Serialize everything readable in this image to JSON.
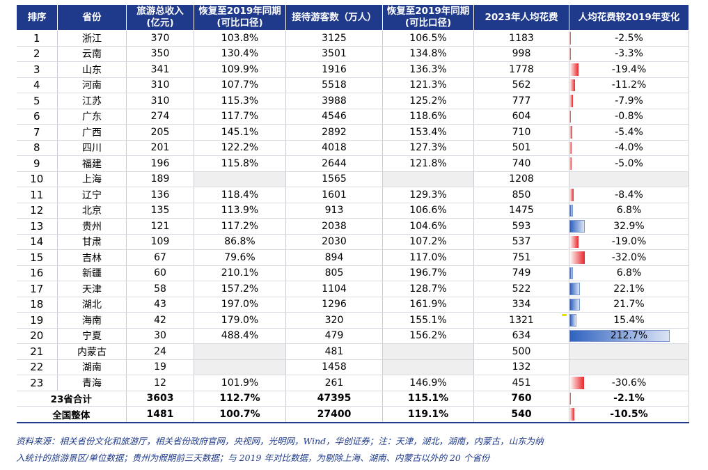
{
  "table": {
    "headers": [
      [
        "排序"
      ],
      [
        "省份"
      ],
      [
        "旅游总收入",
        "(亿元)"
      ],
      [
        "恢复至2019年同期",
        "(可比口径)"
      ],
      [
        "接待游客数（万人）"
      ],
      [
        "恢复至2019年同期",
        "(可比口径)"
      ],
      [
        "2023年人均花费"
      ],
      [
        "人均花费较2019年变化"
      ]
    ],
    "rows": [
      {
        "rank": "1",
        "province": "浙江",
        "revenue": "370",
        "rev_recovery": "103.8%",
        "visitors": "3125",
        "vis_recovery": "106.5%",
        "spend": "1183",
        "change": "-2.5%",
        "change_value": -2.5
      },
      {
        "rank": "2",
        "province": "云南",
        "revenue": "350",
        "rev_recovery": "130.4%",
        "visitors": "3501",
        "vis_recovery": "134.8%",
        "spend": "998",
        "change": "-3.3%",
        "change_value": -3.3
      },
      {
        "rank": "3",
        "province": "山东",
        "revenue": "341",
        "rev_recovery": "109.9%",
        "visitors": "1916",
        "vis_recovery": "136.3%",
        "spend": "1778",
        "change": "-19.4%",
        "change_value": -19.4
      },
      {
        "rank": "4",
        "province": "河南",
        "revenue": "310",
        "rev_recovery": "107.7%",
        "visitors": "5518",
        "vis_recovery": "121.3%",
        "spend": "562",
        "change": "-11.2%",
        "change_value": -11.2
      },
      {
        "rank": "5",
        "province": "江苏",
        "revenue": "310",
        "rev_recovery": "115.3%",
        "visitors": "3988",
        "vis_recovery": "125.2%",
        "spend": "777",
        "change": "-7.9%",
        "change_value": -7.9
      },
      {
        "rank": "6",
        "province": "广东",
        "revenue": "274",
        "rev_recovery": "117.7%",
        "visitors": "4546",
        "vis_recovery": "118.6%",
        "spend": "604",
        "change": "-0.8%",
        "change_value": -0.8
      },
      {
        "rank": "7",
        "province": "广西",
        "revenue": "205",
        "rev_recovery": "145.1%",
        "visitors": "2892",
        "vis_recovery": "153.4%",
        "spend": "710",
        "change": "-5.4%",
        "change_value": -5.4
      },
      {
        "rank": "8",
        "province": "四川",
        "revenue": "201",
        "rev_recovery": "122.2%",
        "visitors": "4018",
        "vis_recovery": "127.3%",
        "spend": "501",
        "change": "-4.0%",
        "change_value": -4.0
      },
      {
        "rank": "9",
        "province": "福建",
        "revenue": "196",
        "rev_recovery": "115.8%",
        "visitors": "2644",
        "vis_recovery": "121.8%",
        "spend": "740",
        "change": "-5.0%",
        "change_value": -5.0
      },
      {
        "rank": "10",
        "province": "上海",
        "revenue": "189",
        "rev_recovery": "",
        "visitors": "1565",
        "vis_recovery": "",
        "spend": "1208",
        "change": "",
        "change_value": null
      },
      {
        "rank": "11",
        "province": "辽宁",
        "revenue": "136",
        "rev_recovery": "118.4%",
        "visitors": "1601",
        "vis_recovery": "129.3%",
        "spend": "850",
        "change": "-8.4%",
        "change_value": -8.4
      },
      {
        "rank": "12",
        "province": "北京",
        "revenue": "135",
        "rev_recovery": "113.9%",
        "visitors": "913",
        "vis_recovery": "106.6%",
        "spend": "1475",
        "change": "6.8%",
        "change_value": 6.8
      },
      {
        "rank": "13",
        "province": "贵州",
        "revenue": "121",
        "rev_recovery": "117.2%",
        "visitors": "2038",
        "vis_recovery": "104.6%",
        "spend": "593",
        "change": "32.9%",
        "change_value": 32.9
      },
      {
        "rank": "14",
        "province": "甘肃",
        "revenue": "109",
        "rev_recovery": "86.8%",
        "visitors": "2030",
        "vis_recovery": "107.2%",
        "spend": "537",
        "change": "-19.0%",
        "change_value": -19.0
      },
      {
        "rank": "15",
        "province": "吉林",
        "revenue": "67",
        "rev_recovery": "79.6%",
        "visitors": "894",
        "vis_recovery": "117.0%",
        "spend": "751",
        "change": "-32.0%",
        "change_value": -32.0
      },
      {
        "rank": "16",
        "province": "新疆",
        "revenue": "60",
        "rev_recovery": "210.1%",
        "visitors": "805",
        "vis_recovery": "196.7%",
        "spend": "749",
        "change": "6.8%",
        "change_value": 6.8
      },
      {
        "rank": "17",
        "province": "天津",
        "revenue": "58",
        "rev_recovery": "157.2%",
        "visitors": "1104",
        "vis_recovery": "128.7%",
        "spend": "522",
        "change": "22.1%",
        "change_value": 22.1
      },
      {
        "rank": "18",
        "province": "湖北",
        "revenue": "43",
        "rev_recovery": "197.0%",
        "visitors": "1296",
        "vis_recovery": "161.9%",
        "spend": "334",
        "change": "21.7%",
        "change_value": 21.7
      },
      {
        "rank": "19",
        "province": "海南",
        "revenue": "42",
        "rev_recovery": "179.0%",
        "visitors": "320",
        "vis_recovery": "155.1%",
        "spend": "1321",
        "change": "15.4%",
        "change_value": 15.4
      },
      {
        "rank": "20",
        "province": "宁夏",
        "revenue": "30",
        "rev_recovery": "488.4%",
        "visitors": "479",
        "vis_recovery": "156.2%",
        "spend": "634",
        "change": "212.7%",
        "change_value": 212.7
      },
      {
        "rank": "21",
        "province": "内蒙古",
        "revenue": "24",
        "rev_recovery": "",
        "visitors": "481",
        "vis_recovery": "",
        "spend": "500",
        "change": "",
        "change_value": null
      },
      {
        "rank": "22",
        "province": "湖南",
        "revenue": "19",
        "rev_recovery": "",
        "visitors": "1458",
        "vis_recovery": "",
        "spend": "132",
        "change": "",
        "change_value": null
      },
      {
        "rank": "23",
        "province": "青海",
        "revenue": "12",
        "rev_recovery": "101.9%",
        "visitors": "261",
        "vis_recovery": "146.9%",
        "spend": "451",
        "change": "-30.6%",
        "change_value": -30.6
      }
    ],
    "summary_rows": [
      {
        "label": "23省合计",
        "revenue": "3603",
        "rev_recovery": "112.7%",
        "visitors": "47395",
        "vis_recovery": "115.1%",
        "spend": "760",
        "change": "-2.1%",
        "change_value": -2.1
      },
      {
        "label": "全国整体",
        "revenue": "1481",
        "rev_recovery": "100.7%",
        "visitors": "27400",
        "vis_recovery": "119.1%",
        "spend": "540",
        "change": "-10.5%",
        "change_value": -10.5
      }
    ]
  },
  "footnote": {
    "line1": "资料来源：相关省份文化和旅游厅，相关省份政府官网，央视网，光明网，Wind，华创证券；注：天津，湖北，湖南，内蒙古，山东为纳",
    "line2": "入统计的旅游景区/单位数据；贵州为假期前三天数据；与 2019 年对比数据，为剔除上海、湖南、内蒙古以外的 20 个省份"
  },
  "colors": {
    "header_bg": "#1f3a8a",
    "negative_bar": "#e8262a",
    "positive_bar": "#2f62bf",
    "footnote_text": "#1f3a8a",
    "missing_cell_bg": "#efefef"
  }
}
